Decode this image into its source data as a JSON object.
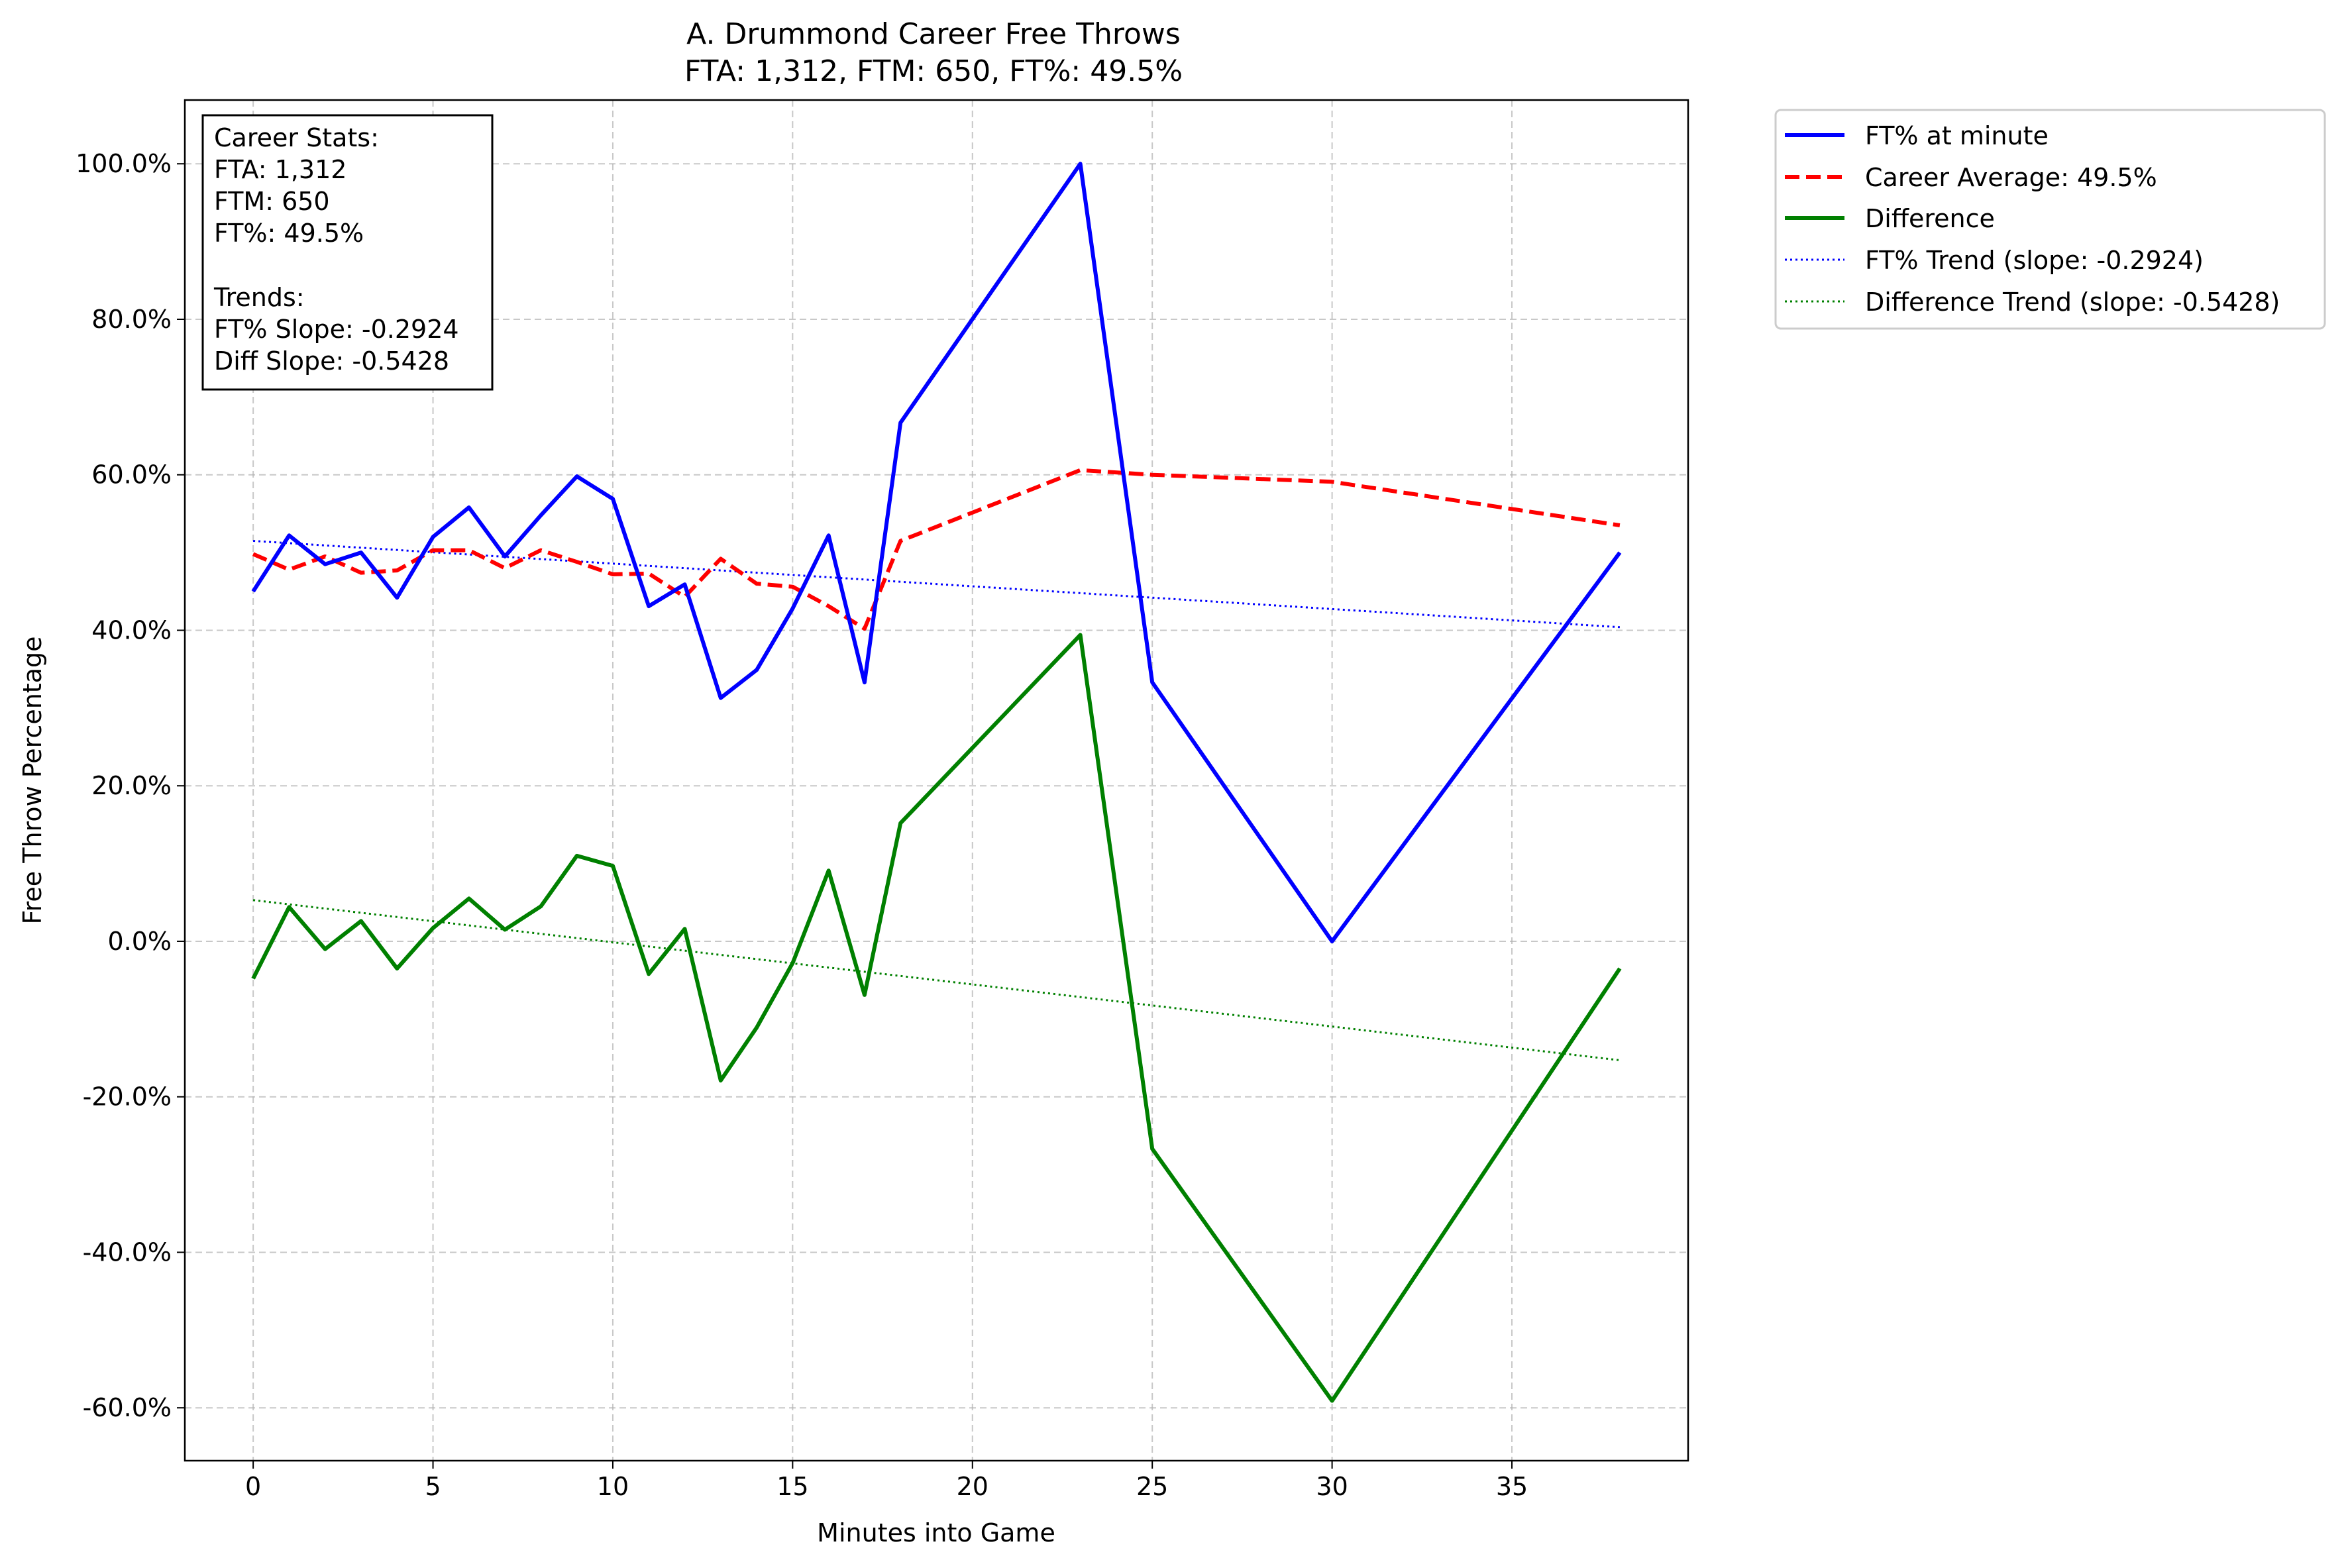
{
  "chart_data": {
    "type": "line",
    "title": "A. Drummond Career Free Throws",
    "subtitle": "FTA: 1,312, FTM: 650, FT%: 49.5%",
    "xlabel": "Minutes into Game",
    "ylabel": "Free Throw Percentage",
    "xlim": [
      -1.9,
      39.9
    ],
    "ylim": [
      -66.8,
      108.2
    ],
    "xticks": [
      0,
      5,
      10,
      15,
      20,
      25,
      30,
      35
    ],
    "yticks": [
      -60,
      -40,
      -20,
      0,
      20,
      40,
      60,
      80,
      100
    ],
    "ytick_labels": [
      "-60.0%",
      "-40.0%",
      "-20.0%",
      "0.0%",
      "20.0%",
      "40.0%",
      "60.0%",
      "80.0%",
      "100.0%"
    ],
    "grid": true,
    "legend_position": "outside-top-right",
    "x": [
      0,
      1,
      2,
      3,
      4,
      5,
      6,
      7,
      8,
      9,
      10,
      11,
      12,
      13,
      14,
      15,
      16,
      17,
      18,
      23,
      25,
      30,
      38
    ],
    "series": [
      {
        "name": "FT% at minute",
        "color": "#0000ff",
        "style": "solid",
        "values": [
          45.0,
          52.2,
          48.5,
          50.0,
          44.2,
          52.0,
          55.8,
          49.5,
          54.8,
          59.8,
          56.9,
          43.1,
          45.9,
          31.3,
          34.9,
          42.8,
          52.2,
          33.3,
          66.7,
          100.0,
          33.3,
          0.0,
          50.0
        ]
      },
      {
        "name": "Career Average: 49.5%",
        "color": "#ff0000",
        "style": "dashed",
        "values": [
          49.8,
          47.8,
          49.5,
          47.4,
          47.7,
          50.3,
          50.3,
          48.0,
          50.3,
          48.8,
          47.2,
          47.3,
          44.3,
          49.2,
          46.0,
          45.6,
          43.1,
          40.2,
          51.5,
          60.6,
          60.0,
          59.1,
          53.5
        ]
      },
      {
        "name": "Difference",
        "color": "#008000",
        "style": "solid",
        "values": [
          -4.8,
          4.4,
          -1.0,
          2.6,
          -3.5,
          1.7,
          5.5,
          1.5,
          4.5,
          11.0,
          9.7,
          -4.2,
          1.6,
          -17.9,
          -11.1,
          -2.8,
          9.1,
          -6.9,
          15.2,
          39.4,
          -26.7,
          -59.1,
          -3.5
        ]
      },
      {
        "name": "FT% Trend (slope: -0.2924)",
        "color": "#0000ff",
        "style": "dotted",
        "x": [
          0,
          38
        ],
        "values": [
          51.5,
          40.4
        ]
      },
      {
        "name": "Difference Trend (slope: -0.5428)",
        "color": "#008000",
        "style": "dotted",
        "x": [
          0,
          38
        ],
        "values": [
          5.3,
          -15.3
        ]
      }
    ],
    "annotation": {
      "lines": [
        "Career Stats:",
        "FTA: 1,312",
        "FTM: 650",
        "FT%: 49.5%",
        "",
        "Trends:",
        "FT% Slope: -0.2924",
        "Diff Slope: -0.5428"
      ]
    }
  }
}
